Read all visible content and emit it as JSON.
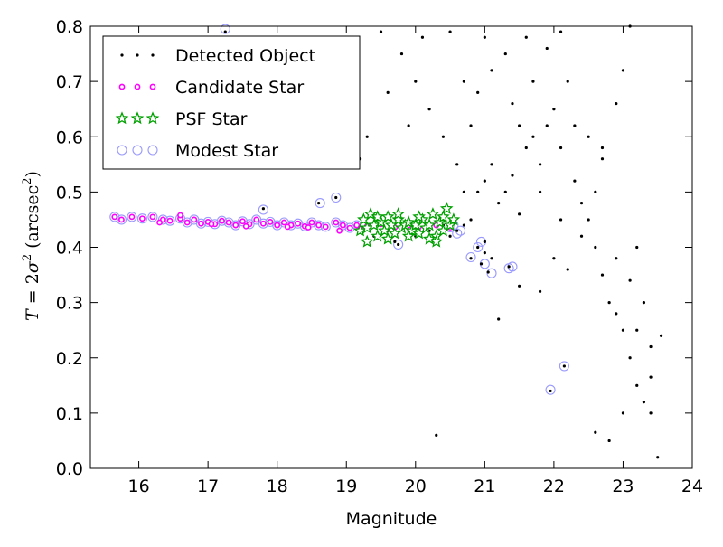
{
  "chart_data": {
    "type": "scatter",
    "xlabel": "Magnitude",
    "ylabel": {
      "prefix": "T",
      "eq": " = 2",
      "sigma": "σ",
      "sup1": "2",
      "unit": " (arcsec",
      "sup2": "2",
      "close": ")"
    },
    "xlim": [
      15.3,
      24.0
    ],
    "ylim": [
      0.0,
      0.8
    ],
    "xticks": [
      "16",
      "17",
      "18",
      "19",
      "20",
      "21",
      "22",
      "23",
      "24"
    ],
    "xtick_values": [
      16,
      17,
      18,
      19,
      20,
      21,
      22,
      23,
      24
    ],
    "yticks": [
      "0.0",
      "0.1",
      "0.2",
      "0.3",
      "0.4",
      "0.5",
      "0.6",
      "0.7",
      "0.8"
    ],
    "ytick_values": [
      0.0,
      0.1,
      0.2,
      0.3,
      0.4,
      0.5,
      0.6,
      0.7,
      0.8
    ],
    "legend_position": "top-left",
    "series": [
      {
        "name": "Detected Object",
        "marker": "dot",
        "color": "#000000",
        "points": [
          [
            19.2,
            0.43
          ],
          [
            19.3,
            0.44
          ],
          [
            19.4,
            0.42
          ],
          [
            19.5,
            0.45
          ],
          [
            19.6,
            0.43
          ],
          [
            19.7,
            0.41
          ],
          [
            19.8,
            0.44
          ],
          [
            19.9,
            0.43
          ],
          [
            20.0,
            0.42
          ],
          [
            20.1,
            0.45
          ],
          [
            20.2,
            0.43
          ],
          [
            20.3,
            0.41
          ],
          [
            20.4,
            0.44
          ],
          [
            20.5,
            0.42
          ],
          [
            20.6,
            0.43
          ],
          [
            20.7,
            0.44
          ],
          [
            20.8,
            0.45
          ],
          [
            20.9,
            0.4
          ],
          [
            21.0,
            0.41
          ],
          [
            21.1,
            0.38
          ],
          [
            20.9,
            0.5
          ],
          [
            21.0,
            0.52
          ],
          [
            21.1,
            0.55
          ],
          [
            21.2,
            0.48
          ],
          [
            21.3,
            0.5
          ],
          [
            21.4,
            0.53
          ],
          [
            21.5,
            0.46
          ],
          [
            21.6,
            0.58
          ],
          [
            21.7,
            0.6
          ],
          [
            21.8,
            0.55
          ],
          [
            21.9,
            0.62
          ],
          [
            22.0,
            0.65
          ],
          [
            22.1,
            0.58
          ],
          [
            22.2,
            0.7
          ],
          [
            22.3,
            0.52
          ],
          [
            22.4,
            0.48
          ],
          [
            22.5,
            0.45
          ],
          [
            22.6,
            0.4
          ],
          [
            22.7,
            0.35
          ],
          [
            22.8,
            0.3
          ],
          [
            22.9,
            0.28
          ],
          [
            23.0,
            0.25
          ],
          [
            23.1,
            0.2
          ],
          [
            23.2,
            0.15
          ],
          [
            23.3,
            0.12
          ],
          [
            23.4,
            0.1
          ],
          [
            23.5,
            0.02
          ],
          [
            22.8,
            0.05
          ],
          [
            20.3,
            0.06
          ],
          [
            21.2,
            0.27
          ],
          [
            21.5,
            0.33
          ],
          [
            21.8,
            0.32
          ],
          [
            22.0,
            0.38
          ],
          [
            22.2,
            0.36
          ],
          [
            22.4,
            0.42
          ],
          [
            22.6,
            0.5
          ],
          [
            22.7,
            0.58
          ],
          [
            22.9,
            0.66
          ],
          [
            23.0,
            0.72
          ],
          [
            23.1,
            0.8
          ],
          [
            21.0,
            0.78
          ],
          [
            21.3,
            0.75
          ],
          [
            21.6,
            0.78
          ],
          [
            21.9,
            0.76
          ],
          [
            22.1,
            0.79
          ],
          [
            20.5,
            0.79
          ],
          [
            20.1,
            0.78
          ],
          [
            19.8,
            0.75
          ],
          [
            20.0,
            0.7
          ],
          [
            19.6,
            0.68
          ],
          [
            19.9,
            0.62
          ],
          [
            20.2,
            0.65
          ],
          [
            20.4,
            0.6
          ],
          [
            20.6,
            0.55
          ],
          [
            20.8,
            0.62
          ],
          [
            20.7,
            0.7
          ],
          [
            20.9,
            0.68
          ],
          [
            21.1,
            0.72
          ],
          [
            21.4,
            0.66
          ],
          [
            21.7,
            0.7
          ],
          [
            22.3,
            0.62
          ],
          [
            22.5,
            0.6
          ],
          [
            22.7,
            0.56
          ],
          [
            23.2,
            0.4
          ],
          [
            23.3,
            0.3
          ],
          [
            23.4,
            0.22
          ],
          [
            23.1,
            0.34
          ],
          [
            22.9,
            0.38
          ],
          [
            19.5,
            0.79
          ],
          [
            19.3,
            0.6
          ],
          [
            19.2,
            0.56
          ],
          [
            17.25,
            0.79
          ],
          [
            18.6,
            0.48
          ],
          [
            18.85,
            0.49
          ],
          [
            17.8,
            0.47
          ],
          [
            20.7,
            0.5
          ],
          [
            21.5,
            0.62
          ],
          [
            21.8,
            0.5
          ],
          [
            22.1,
            0.45
          ],
          [
            21.95,
            0.14
          ],
          [
            22.15,
            0.185
          ],
          [
            21.05,
            0.355
          ],
          [
            21.35,
            0.365
          ],
          [
            20.95,
            0.37
          ],
          [
            21.0,
            0.39
          ],
          [
            20.8,
            0.38
          ],
          [
            19.75,
            0.405
          ],
          [
            23.55,
            0.24
          ],
          [
            23.0,
            0.1
          ],
          [
            22.6,
            0.065
          ],
          [
            23.4,
            0.165
          ],
          [
            23.2,
            0.25
          ]
        ]
      },
      {
        "name": "Candidate Star",
        "marker": "circle-magenta",
        "color": "#ff00ff",
        "points": [
          [
            15.65,
            0.455
          ],
          [
            15.75,
            0.45
          ],
          [
            15.9,
            0.455
          ],
          [
            16.05,
            0.452
          ],
          [
            16.2,
            0.455
          ],
          [
            16.35,
            0.45
          ],
          [
            16.45,
            0.448
          ],
          [
            16.6,
            0.452
          ],
          [
            16.7,
            0.445
          ],
          [
            16.8,
            0.45
          ],
          [
            16.9,
            0.443
          ],
          [
            17.0,
            0.446
          ],
          [
            17.1,
            0.442
          ],
          [
            17.2,
            0.448
          ],
          [
            17.3,
            0.445
          ],
          [
            17.4,
            0.44
          ],
          [
            17.5,
            0.447
          ],
          [
            17.6,
            0.442
          ],
          [
            17.7,
            0.45
          ],
          [
            17.8,
            0.443
          ],
          [
            17.9,
            0.446
          ],
          [
            18.0,
            0.44
          ],
          [
            18.1,
            0.445
          ],
          [
            18.2,
            0.44
          ],
          [
            18.3,
            0.443
          ],
          [
            18.4,
            0.438
          ],
          [
            18.5,
            0.445
          ],
          [
            18.6,
            0.44
          ],
          [
            18.7,
            0.437
          ],
          [
            18.85,
            0.445
          ],
          [
            18.95,
            0.44
          ],
          [
            19.05,
            0.435
          ],
          [
            19.15,
            0.44
          ],
          [
            16.3,
            0.445
          ],
          [
            16.6,
            0.458
          ],
          [
            17.05,
            0.442
          ],
          [
            17.55,
            0.438
          ],
          [
            18.15,
            0.437
          ],
          [
            18.45,
            0.436
          ],
          [
            18.9,
            0.43
          ],
          [
            19.2,
            0.433
          ],
          [
            19.3,
            0.438
          ],
          [
            19.5,
            0.442
          ],
          [
            19.7,
            0.436
          ],
          [
            19.9,
            0.44
          ],
          [
            20.1,
            0.432
          ],
          [
            20.3,
            0.44
          ],
          [
            20.5,
            0.436
          ]
        ]
      },
      {
        "name": "PSF Star",
        "marker": "star",
        "color": "#00a000",
        "points": [
          [
            19.2,
            0.43
          ],
          [
            19.25,
            0.45
          ],
          [
            19.3,
            0.435
          ],
          [
            19.35,
            0.46
          ],
          [
            19.4,
            0.44
          ],
          [
            19.45,
            0.42
          ],
          [
            19.5,
            0.445
          ],
          [
            19.55,
            0.43
          ],
          [
            19.6,
            0.455
          ],
          [
            19.65,
            0.44
          ],
          [
            19.7,
            0.425
          ],
          [
            19.75,
            0.45
          ],
          [
            19.8,
            0.435
          ],
          [
            19.85,
            0.44
          ],
          [
            19.9,
            0.445
          ],
          [
            19.95,
            0.43
          ],
          [
            20.0,
            0.44
          ],
          [
            20.05,
            0.425
          ],
          [
            20.1,
            0.45
          ],
          [
            20.15,
            0.435
          ],
          [
            20.2,
            0.44
          ],
          [
            20.25,
            0.46
          ],
          [
            20.3,
            0.42
          ],
          [
            20.35,
            0.445
          ],
          [
            20.4,
            0.43
          ],
          [
            20.45,
            0.47
          ],
          [
            20.5,
            0.44
          ],
          [
            20.55,
            0.45
          ],
          [
            19.3,
            0.41
          ],
          [
            19.6,
            0.415
          ],
          [
            19.9,
            0.42
          ],
          [
            20.2,
            0.415
          ],
          [
            20.3,
            0.41
          ],
          [
            19.45,
            0.455
          ],
          [
            19.75,
            0.46
          ],
          [
            20.05,
            0.455
          ],
          [
            20.4,
            0.455
          ]
        ]
      },
      {
        "name": "Modest Star",
        "marker": "circle-open",
        "color": "#9999ff",
        "points": [
          [
            15.65,
            0.455
          ],
          [
            15.75,
            0.45
          ],
          [
            15.9,
            0.455
          ],
          [
            16.05,
            0.452
          ],
          [
            16.2,
            0.455
          ],
          [
            16.35,
            0.45
          ],
          [
            16.45,
            0.448
          ],
          [
            16.6,
            0.452
          ],
          [
            16.7,
            0.445
          ],
          [
            16.8,
            0.45
          ],
          [
            16.9,
            0.443
          ],
          [
            17.0,
            0.446
          ],
          [
            17.1,
            0.442
          ],
          [
            17.2,
            0.448
          ],
          [
            17.3,
            0.445
          ],
          [
            17.4,
            0.44
          ],
          [
            17.5,
            0.447
          ],
          [
            17.6,
            0.442
          ],
          [
            17.7,
            0.45
          ],
          [
            17.8,
            0.443
          ],
          [
            17.9,
            0.446
          ],
          [
            18.0,
            0.44
          ],
          [
            18.1,
            0.445
          ],
          [
            18.2,
            0.44
          ],
          [
            18.3,
            0.443
          ],
          [
            18.4,
            0.438
          ],
          [
            18.5,
            0.445
          ],
          [
            18.6,
            0.44
          ],
          [
            18.7,
            0.437
          ],
          [
            18.85,
            0.445
          ],
          [
            18.95,
            0.44
          ],
          [
            19.05,
            0.435
          ],
          [
            19.15,
            0.44
          ],
          [
            17.25,
            0.795
          ],
          [
            17.8,
            0.468
          ],
          [
            18.62,
            0.48
          ],
          [
            18.85,
            0.49
          ],
          [
            20.6,
            0.425
          ],
          [
            20.65,
            0.43
          ],
          [
            20.8,
            0.382
          ],
          [
            20.9,
            0.4
          ],
          [
            20.95,
            0.41
          ],
          [
            21.0,
            0.37
          ],
          [
            21.1,
            0.353
          ],
          [
            21.35,
            0.362
          ],
          [
            21.4,
            0.365
          ],
          [
            21.95,
            0.142
          ],
          [
            22.15,
            0.185
          ],
          [
            19.75,
            0.405
          ],
          [
            20.5,
            0.436
          ],
          [
            20.55,
            0.44
          ]
        ]
      }
    ]
  }
}
